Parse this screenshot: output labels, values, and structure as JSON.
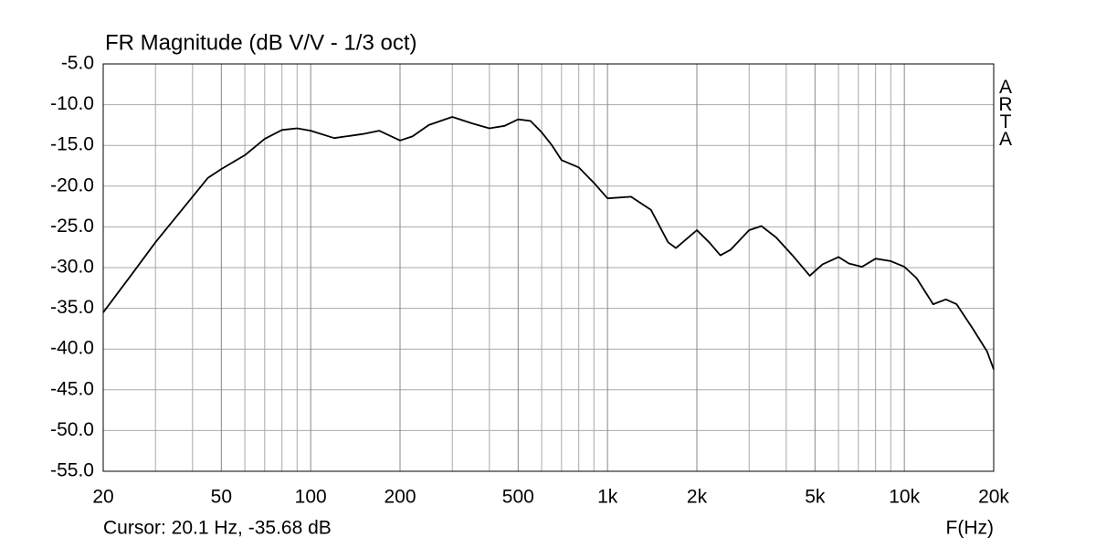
{
  "chart_data": {
    "type": "line",
    "title": "FR Magnitude (dB V/V - 1/3 oct)",
    "watermark": "ARTA",
    "cursor_text": "Cursor: 20.1 Hz, -35.68 dB",
    "x_label": "F(Hz)",
    "log_x": true,
    "grid": true,
    "xlim": [
      20,
      20000
    ],
    "ylim": [
      -55,
      -5
    ],
    "xticks": [
      20,
      50,
      100,
      200,
      500,
      {
        "value": 1000,
        "label": "1k"
      },
      {
        "value": 2000,
        "label": "2k"
      },
      {
        "value": 5000,
        "label": "5k"
      },
      {
        "value": 10000,
        "label": "10k"
      },
      {
        "value": 20000,
        "label": "20k"
      }
    ],
    "x_minor_grid": [
      30,
      40,
      60,
      70,
      80,
      90,
      300,
      400,
      600,
      700,
      800,
      900,
      3000,
      4000,
      6000,
      7000,
      8000,
      9000
    ],
    "yticks": [
      {
        "value": -5,
        "label": "-5.0"
      },
      {
        "value": -10,
        "label": "-10.0"
      },
      {
        "value": -15,
        "label": "-15.0"
      },
      {
        "value": -20,
        "label": "-20.0"
      },
      {
        "value": -25,
        "label": "-25.0"
      },
      {
        "value": -30,
        "label": "-30.0"
      },
      {
        "value": -35,
        "label": "-35.0"
      },
      {
        "value": -40,
        "label": "-40.0"
      },
      {
        "value": -45,
        "label": "-45.0"
      },
      {
        "value": -50,
        "label": "-50.0"
      },
      {
        "value": -55,
        "label": "-55.0"
      }
    ],
    "series": [
      {
        "color": "#000000",
        "x": [
          20,
          25,
          30,
          40,
          45,
          50,
          60,
          70,
          80,
          90,
          100,
          120,
          150,
          170,
          200,
          220,
          250,
          300,
          350,
          400,
          450,
          500,
          550,
          600,
          650,
          700,
          800,
          900,
          1000,
          1200,
          1400,
          1600,
          1700,
          2000,
          2200,
          2400,
          2600,
          3000,
          3300,
          3700,
          4200,
          4800,
          5300,
          6000,
          6500,
          7200,
          8000,
          9000,
          10000,
          11000,
          12500,
          13800,
          15000,
          17000,
          19000,
          20000
        ],
        "values": [
          -35.5,
          -30.8,
          -26.9,
          -21.3,
          -19.0,
          -17.9,
          -16.2,
          -14.2,
          -13.1,
          -12.9,
          -13.2,
          -14.1,
          -13.6,
          -13.2,
          -14.4,
          -13.9,
          -12.5,
          -11.5,
          -12.3,
          -12.9,
          -12.6,
          -11.8,
          -12.0,
          -13.4,
          -15.0,
          -16.8,
          -17.7,
          -19.6,
          -21.5,
          -21.3,
          -22.9,
          -26.9,
          -27.6,
          -25.4,
          -26.9,
          -28.5,
          -27.8,
          -25.4,
          -24.9,
          -26.3,
          -28.5,
          -31.0,
          -29.6,
          -28.7,
          -29.5,
          -29.9,
          -28.9,
          -29.2,
          -29.9,
          -31.3,
          -34.5,
          -33.9,
          -34.5,
          -37.5,
          -40.3,
          -42.5
        ]
      }
    ]
  }
}
